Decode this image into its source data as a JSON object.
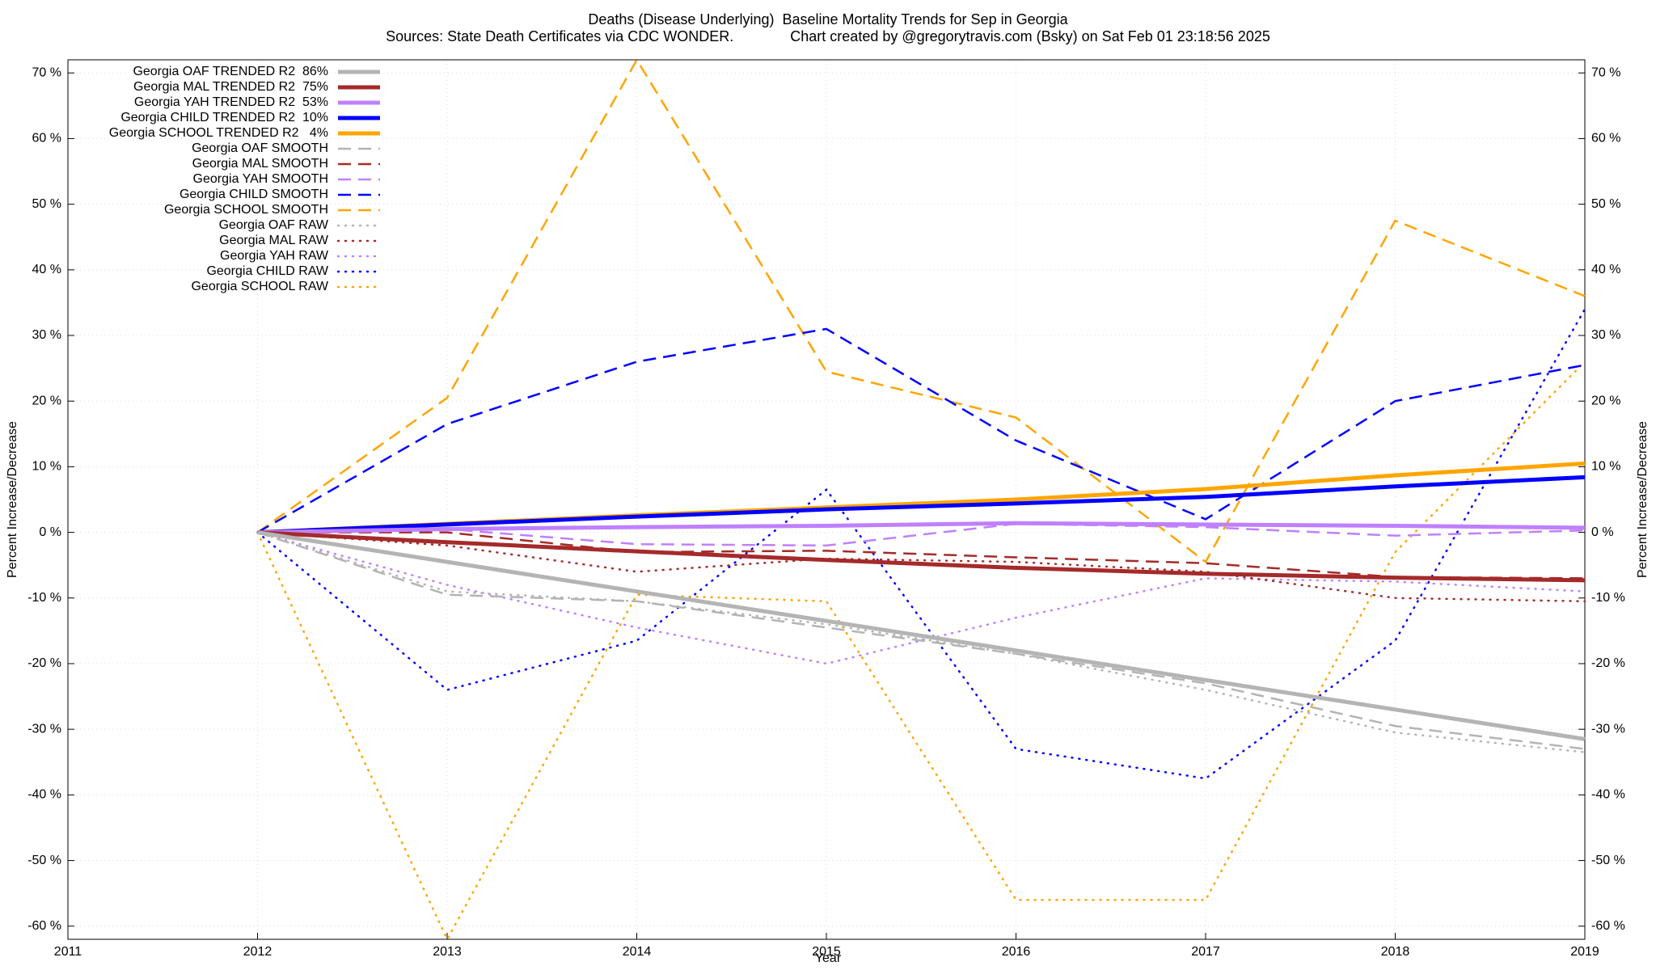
{
  "chart_data": {
    "type": "line",
    "title": "Deaths (Disease Underlying)  Baseline Mortality Trends for Sep in Georgia",
    "subtitle": "Sources: State Death Certificates via CDC WONDER.              Chart created by @gregorytravis.com (Bsky) on Sat Feb 01 23:18:56 2025",
    "x_label": "Year",
    "y_label": "Percent Increase/Decrease",
    "y2_label": "Percent Increase/Decrease",
    "x": [
      2012,
      2013,
      2014,
      2015,
      2016,
      2017,
      2018,
      2019
    ],
    "xlim": [
      2011,
      2019
    ],
    "xticks": [
      2011,
      2012,
      2013,
      2014,
      2015,
      2016,
      2017,
      2018,
      2019
    ],
    "ylim": [
      -62,
      72
    ],
    "yticks": [
      {
        "value": -60,
        "label": "-60 %"
      },
      {
        "value": -50,
        "label": "-50 %"
      },
      {
        "value": -40,
        "label": "-40 %"
      },
      {
        "value": -30,
        "label": "-30 %"
      },
      {
        "value": -20,
        "label": "-20 %"
      },
      {
        "value": -10,
        "label": "-10 %"
      },
      {
        "value": 0,
        "label": "0 %"
      },
      {
        "value": 10,
        "label": "10 %"
      },
      {
        "value": 20,
        "label": "20 %"
      },
      {
        "value": 30,
        "label": "30 %"
      },
      {
        "value": 40,
        "label": "40 %"
      },
      {
        "value": 50,
        "label": "50 %"
      },
      {
        "value": 60,
        "label": "60 %"
      },
      {
        "value": 70,
        "label": "70 %"
      }
    ],
    "grid": true,
    "legend": "top-left",
    "series": [
      {
        "name": "Georgia OAF TRENDED R2  86%",
        "color": "#b4b4b4",
        "style": "solid",
        "width": 5,
        "values": [
          0,
          -4.5,
          -9,
          -13.5,
          -18,
          -22.5,
          -27,
          -31.5
        ]
      },
      {
        "name": "Georgia MAL TRENDED R2  75%",
        "color": "#a52a2a",
        "style": "solid",
        "width": 5,
        "values": [
          0,
          -1.5,
          -2.9,
          -4.2,
          -5.4,
          -6.3,
          -6.9,
          -7.3
        ]
      },
      {
        "name": "Georgia YAH TRENDED R2  53%",
        "color": "#bf80ff",
        "style": "solid",
        "width": 5,
        "values": [
          0,
          0.5,
          0.8,
          1.0,
          1.4,
          1.2,
          1.0,
          0.7
        ]
      },
      {
        "name": "Georgia CHILD TRENDED R2  10%",
        "color": "#0000ff",
        "style": "solid",
        "width": 5,
        "values": [
          0,
          1.2,
          2.4,
          3.5,
          4.4,
          5.4,
          7.0,
          8.4
        ]
      },
      {
        "name": "Georgia SCHOOL TRENDED R2   4%",
        "color": "#ffa500",
        "style": "solid",
        "width": 5,
        "values": [
          0,
          1.3,
          2.6,
          3.8,
          5.0,
          6.6,
          8.7,
          10.5
        ]
      },
      {
        "name": "Georgia OAF SMOOTH",
        "color": "#b4b4b4",
        "style": "dashed",
        "width": 2.5,
        "values": [
          0,
          -9.5,
          -10.5,
          -14.5,
          -18.5,
          -23,
          -29.5,
          -33
        ]
      },
      {
        "name": "Georgia MAL SMOOTH",
        "color": "#a52a2a",
        "style": "dashed",
        "width": 2.5,
        "values": [
          0,
          0,
          -3,
          -2.8,
          -3.8,
          -4.7,
          -6.8,
          -7
        ]
      },
      {
        "name": "Georgia YAH SMOOTH",
        "color": "#bf80ff",
        "style": "dashed",
        "width": 2.5,
        "values": [
          0,
          0.5,
          -1.8,
          -2,
          1.3,
          0.8,
          -0.5,
          0.3
        ]
      },
      {
        "name": "Georgia CHILD SMOOTH",
        "color": "#0000ff",
        "style": "dashed",
        "width": 2.5,
        "values": [
          0,
          16.5,
          26,
          31,
          14,
          2,
          20,
          25.5
        ]
      },
      {
        "name": "Georgia SCHOOL SMOOTH",
        "color": "#ffa500",
        "style": "dashed",
        "width": 2.5,
        "values": [
          0,
          20.5,
          72,
          24.5,
          17.5,
          -4.5,
          47.5,
          36
        ]
      },
      {
        "name": "Georgia OAF RAW",
        "color": "#b4b4b4",
        "style": "dotted",
        "width": 2.5,
        "values": [
          0,
          -9,
          -10.5,
          -14,
          -18.5,
          -24,
          -30.5,
          -33.5
        ]
      },
      {
        "name": "Georgia MAL RAW",
        "color": "#a52a2a",
        "style": "dotted",
        "width": 2.5,
        "values": [
          0,
          -2,
          -6,
          -4,
          -4.5,
          -6,
          -10,
          -10.5
        ]
      },
      {
        "name": "Georgia YAH RAW",
        "color": "#bf80ff",
        "style": "dotted",
        "width": 2.5,
        "values": [
          0,
          -8,
          -14.5,
          -20,
          -13,
          -7,
          -7.5,
          -9
        ]
      },
      {
        "name": "Georgia CHILD RAW",
        "color": "#0000ff",
        "style": "dotted",
        "width": 2.5,
        "values": [
          0,
          -24,
          -16.5,
          6.5,
          -33,
          -37.5,
          -16.5,
          34
        ]
      },
      {
        "name": "Georgia SCHOOL RAW",
        "color": "#ffa500",
        "style": "dotted",
        "width": 2.5,
        "values": [
          0,
          -62,
          -9.5,
          -10.5,
          -56,
          -56,
          -3,
          26
        ]
      }
    ]
  }
}
